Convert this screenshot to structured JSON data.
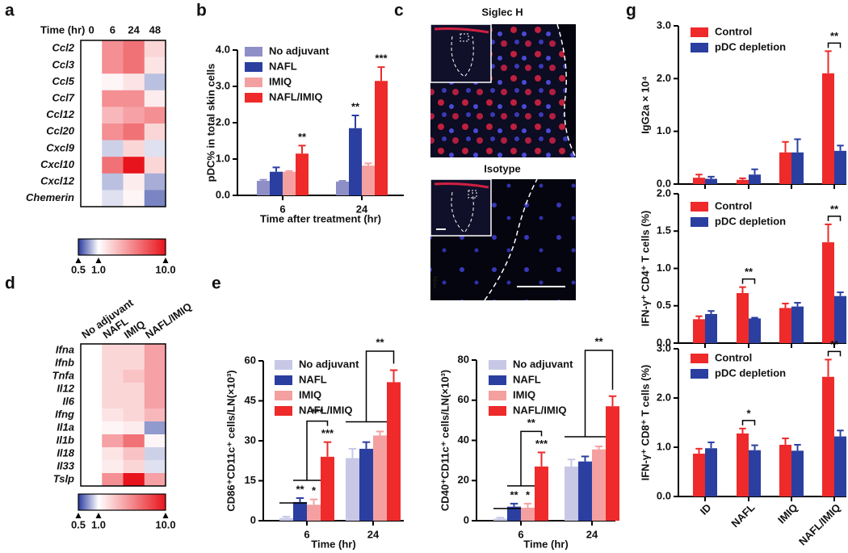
{
  "chart_data": [
    {
      "type": "heatmap",
      "panel": "a",
      "title": "Time (hr)",
      "columns": [
        "0",
        "6",
        "24",
        "48"
      ],
      "rows": [
        "Ccl2",
        "Ccl3",
        "Ccl5",
        "Ccl7",
        "Ccl12",
        "Ccl20",
        "Cxcl9",
        "Cxcl10",
        "Cxcl12",
        "Chemerin"
      ],
      "values": [
        [
          1,
          3,
          4,
          1.5
        ],
        [
          1,
          3,
          4,
          1.3
        ],
        [
          1,
          1.1,
          1.3,
          0.8
        ],
        [
          1,
          3,
          3,
          1.2
        ],
        [
          1,
          2,
          2.5,
          3
        ],
        [
          1,
          3,
          4,
          1.5
        ],
        [
          1,
          0.85,
          1.5,
          0.9
        ],
        [
          1,
          4,
          10,
          1.5
        ],
        [
          1,
          0.8,
          1.2,
          0.75
        ],
        [
          1,
          0.9,
          1.1,
          0.65
        ]
      ],
      "colors": [
        "#2a3a9e",
        "#ffffff",
        "#e8141c"
      ],
      "log_scale": true,
      "clim": [
        0.5,
        10
      ],
      "cticks": [
        0.5,
        {
          "value": 1,
          "label": "1.0"
        },
        {
          "value": 10,
          "label": "10.0"
        }
      ]
    },
    {
      "type": "bar",
      "panel": "b",
      "categories": [
        "6",
        "24"
      ],
      "ylabel": "pDC% in total skin cells",
      "xlabel": "Time after treatment (hr)",
      "legend": "upper left",
      "ylim": [
        0,
        4
      ],
      "yticks": [
        {
          "value": 0,
          "label": "0.0"
        },
        {
          "value": 1,
          "label": "1.0"
        },
        {
          "value": 2,
          "label": "2.0"
        },
        {
          "value": 3,
          "label": "3.0"
        },
        {
          "value": 4,
          "label": "4.0"
        }
      ],
      "series": [
        {
          "name": "No adjuvant",
          "color": "#8f8fc8",
          "values": [
            0.4,
            0.38
          ],
          "errors": [
            0.03,
            0.02
          ],
          "significance": [
            null,
            null
          ]
        },
        {
          "name": "NAFL",
          "color": "#2b3fa0",
          "values": [
            0.65,
            1.85
          ],
          "errors": [
            0.12,
            0.35
          ],
          "significance": [
            null,
            "**"
          ]
        },
        {
          "name": "IMIQ",
          "color": "#f4a0a0",
          "values": [
            0.65,
            0.82
          ],
          "errors": [
            0.02,
            0.06
          ],
          "significance": [
            null,
            null
          ]
        },
        {
          "name": "NAFL/IMIQ",
          "color": "#ee2a2a",
          "values": [
            1.15,
            3.15
          ],
          "errors": [
            0.22,
            0.38
          ],
          "significance": [
            "**",
            "***"
          ]
        }
      ]
    },
    {
      "type": "image",
      "panel": "c",
      "titles": [
        "Siglec H",
        "Isotype"
      ]
    },
    {
      "type": "heatmap",
      "panel": "d",
      "columns": [
        "No adjuvant",
        "NAFL",
        "IMIQ",
        "NAFL/IMIQ"
      ],
      "rows": [
        "Ifna",
        "Ifnb",
        "Tnfa",
        "Il12",
        "Il6",
        "Ifng",
        "Il1a",
        "Il1b",
        "Il18",
        "Il33",
        "Tslp"
      ],
      "values": [
        [
          1,
          1.5,
          1.5,
          2.5
        ],
        [
          1,
          1.5,
          1.5,
          2.5
        ],
        [
          1,
          1.5,
          1.8,
          2.5
        ],
        [
          1,
          1.5,
          1.5,
          2.5
        ],
        [
          1,
          1.5,
          1.5,
          2.5
        ],
        [
          1,
          1.3,
          1.5,
          2
        ],
        [
          1,
          1.1,
          1.2,
          0.7
        ],
        [
          1,
          2.5,
          4,
          1.1
        ],
        [
          1,
          1.3,
          1.8,
          0.85
        ],
        [
          1,
          1.2,
          1.5,
          0.9
        ],
        [
          1,
          3,
          10,
          2.5
        ]
      ],
      "colors": [
        "#2a3a9e",
        "#ffffff",
        "#e8141c"
      ],
      "log_scale": true,
      "clim": [
        0.5,
        10
      ],
      "cticks": [
        0.5,
        {
          "value": 1,
          "label": "1.0"
        },
        {
          "value": 10,
          "label": "10.0"
        }
      ]
    },
    {
      "type": "bar",
      "panel": "e",
      "categories": [
        "6",
        "24"
      ],
      "ylabel": "CD86⁺CD11c⁺ cells/LN(×10³)",
      "xlabel": "Time (hr)",
      "legend": "upper left",
      "ylim": [
        0,
        60
      ],
      "yticks": [
        0,
        15,
        30,
        45,
        60
      ],
      "annotations": [
        "***",
        "**"
      ],
      "series": [
        {
          "name": "No adjuvant",
          "color": "#c8c8e6",
          "values": [
            1,
            23.5
          ],
          "errors": [
            0.5,
            3.5
          ],
          "significance": [
            null,
            null
          ]
        },
        {
          "name": "NAFL",
          "color": "#2b3fa0",
          "values": [
            7,
            27
          ],
          "errors": [
            1.5,
            2.5
          ],
          "significance": [
            "**",
            null
          ]
        },
        {
          "name": "IMIQ",
          "color": "#f4a0a0",
          "values": [
            6,
            32
          ],
          "errors": [
            2,
            1.5
          ],
          "significance": [
            "*",
            null
          ]
        },
        {
          "name": "NAFL/IMIQ",
          "color": "#ee2a2a",
          "values": [
            24,
            52
          ],
          "errors": [
            5.5,
            4.5
          ],
          "significance": [
            "***",
            null
          ]
        }
      ]
    },
    {
      "type": "bar",
      "panel": "f",
      "categories": [
        "6",
        "24"
      ],
      "ylabel": "CD40⁺CD11c⁺ cells/LN(×10³)",
      "xlabel": "Time (hr)",
      "legend": "upper left",
      "ylim": [
        0,
        80
      ],
      "yticks": [
        0,
        20,
        40,
        60,
        80
      ],
      "annotations": [
        "**",
        "**"
      ],
      "series": [
        {
          "name": "No adjuvant",
          "color": "#c8c8e6",
          "values": [
            1,
            27
          ],
          "errors": [
            0.5,
            3.5
          ],
          "significance": [
            null,
            null
          ]
        },
        {
          "name": "NAFL",
          "color": "#2b3fa0",
          "values": [
            7,
            29.5
          ],
          "errors": [
            1.5,
            2.5
          ],
          "significance": [
            "**",
            null
          ]
        },
        {
          "name": "IMIQ",
          "color": "#f4a0a0",
          "values": [
            6.5,
            35.5
          ],
          "errors": [
            2,
            1.5
          ],
          "significance": [
            "*",
            null
          ]
        },
        {
          "name": "NAFL/IMIQ",
          "color": "#ee2a2a",
          "values": [
            27,
            57
          ],
          "errors": [
            7,
            5
          ],
          "significance": [
            "***",
            null
          ]
        }
      ]
    },
    {
      "type": "bar_panels",
      "panel": "g",
      "categories": [
        "ID",
        "NAFL",
        "IMIQ",
        "NAFL/IMIQ"
      ],
      "legend": "upper left",
      "subplots": [
        {
          "ylabel": "IgG2a × 10⁴",
          "ylim": [
            0,
            3
          ],
          "yticks": [
            {
              "value": 0,
              "label": "0.0"
            },
            {
              "value": 1,
              "label": "1.0"
            },
            {
              "value": 2,
              "label": "2.0"
            },
            {
              "value": 3,
              "label": "3.0"
            }
          ],
          "significance": [
            null,
            null,
            null,
            "**"
          ],
          "series": [
            {
              "name": "Control",
              "color": "#ee2a2a",
              "values": [
                0.12,
                0.08,
                0.6,
                2.1
              ],
              "errors": [
                0.06,
                0.03,
                0.2,
                0.42
              ]
            },
            {
              "name": "pDC depletion",
              "color": "#2b3fa0",
              "values": [
                0.1,
                0.18,
                0.6,
                0.63
              ],
              "errors": [
                0.04,
                0.1,
                0.25,
                0.1
              ]
            }
          ]
        },
        {
          "ylabel": "IFN-γ⁺ CD4⁺ T cells (%)",
          "ylim": [
            0,
            2
          ],
          "yticks": [
            {
              "value": 0,
              "label": "0.0"
            },
            0.5,
            {
              "value": 1,
              "label": "1.0"
            },
            1.5,
            {
              "value": 2,
              "label": "2.0"
            }
          ],
          "significance": [
            null,
            "**",
            null,
            "**"
          ],
          "series": [
            {
              "name": "Control",
              "color": "#ee2a2a",
              "values": [
                0.32,
                0.67,
                0.47,
                1.35
              ],
              "errors": [
                0.04,
                0.08,
                0.06,
                0.24
              ]
            },
            {
              "name": "pDC depletion",
              "color": "#2b3fa0",
              "values": [
                0.39,
                0.33,
                0.49,
                0.63
              ],
              "errors": [
                0.04,
                0.01,
                0.05,
                0.05
              ]
            }
          ]
        },
        {
          "ylabel": "IFN-γ⁺ CD8⁺ T cells (%)",
          "ylim": [
            0,
            3
          ],
          "yticks": [
            {
              "value": 0,
              "label": "0.0"
            },
            {
              "value": 1,
              "label": "1.0"
            },
            {
              "value": 2,
              "label": "2.0"
            },
            {
              "value": 3,
              "label": "3.0"
            }
          ],
          "significance": [
            null,
            "*",
            null,
            "**"
          ],
          "series": [
            {
              "name": "Control",
              "color": "#ee2a2a",
              "values": [
                0.87,
                1.28,
                1.05,
                2.43
              ],
              "errors": [
                0.1,
                0.1,
                0.13,
                0.35
              ]
            },
            {
              "name": "pDC depletion",
              "color": "#2b3fa0",
              "values": [
                0.98,
                0.94,
                0.93,
                1.22
              ],
              "errors": [
                0.12,
                0.1,
                0.12,
                0.12
              ]
            }
          ]
        }
      ]
    }
  ]
}
